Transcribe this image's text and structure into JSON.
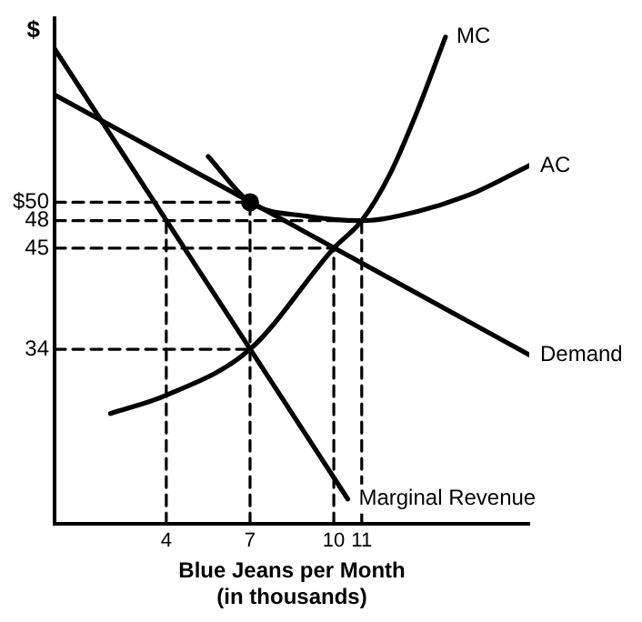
{
  "chart_data": {
    "type": "line",
    "xlabel": "Blue Jeans per Month\n(in thousands)",
    "ylabel": "$",
    "xlim": [
      0,
      17
    ],
    "ylim": [
      15,
      70
    ],
    "xticks": [
      4,
      7,
      10,
      11
    ],
    "yticks": [
      {
        "value": 50,
        "label": "$50"
      },
      48,
      45,
      34
    ],
    "grid": false,
    "legend": false,
    "marker": "none",
    "series": [
      {
        "name": "MC",
        "color": "#000000",
        "x": [
          2,
          4,
          7,
          10,
          11,
          12,
          13,
          14
        ],
        "values": [
          27,
          29,
          34,
          45,
          48,
          53,
          60,
          68
        ]
      },
      {
        "name": "AC",
        "color": "#000000",
        "x": [
          5.5,
          7,
          9,
          11,
          13,
          15,
          17
        ],
        "values": [
          55,
          50,
          48.5,
          48,
          49,
          51,
          54
        ]
      },
      {
        "name": "Demand",
        "color": "#000000",
        "x": [
          0,
          17
        ],
        "values": [
          61.7,
          33.4
        ]
      },
      {
        "name": "Marginal Revenue",
        "color": "#000000",
        "x": [
          0,
          10.5
        ],
        "values": [
          66.7,
          17.7
        ]
      },
      {
        "color": "#000000",
        "line_style": "dashed",
        "x": [
          0,
          7
        ],
        "values": [
          50,
          50
        ]
      },
      {
        "color": "#000000",
        "line_style": "dashed",
        "x": [
          0,
          11
        ],
        "values": [
          48,
          48
        ]
      },
      {
        "color": "#000000",
        "line_style": "dashed",
        "x": [
          0,
          10
        ],
        "values": [
          45,
          45
        ]
      },
      {
        "color": "#000000",
        "line_style": "dashed",
        "x": [
          0,
          7
        ],
        "values": [
          34,
          34
        ]
      },
      {
        "color": "#000000",
        "line_style": "dashed",
        "x": [
          4,
          4
        ],
        "values": [
          15,
          48
        ]
      },
      {
        "color": "#000000",
        "line_style": "dashed",
        "x": [
          7,
          7
        ],
        "values": [
          15,
          50
        ]
      },
      {
        "color": "#000000",
        "line_style": "dashed",
        "x": [
          10,
          10
        ],
        "values": [
          15,
          45
        ]
      },
      {
        "color": "#000000",
        "line_style": "dashed",
        "x": [
          11,
          11
        ],
        "values": [
          15,
          48
        ]
      },
      {
        "type": "scatter",
        "color": "#000000",
        "marker": "circle",
        "x": [
          7
        ],
        "values": [
          50
        ]
      }
    ]
  }
}
